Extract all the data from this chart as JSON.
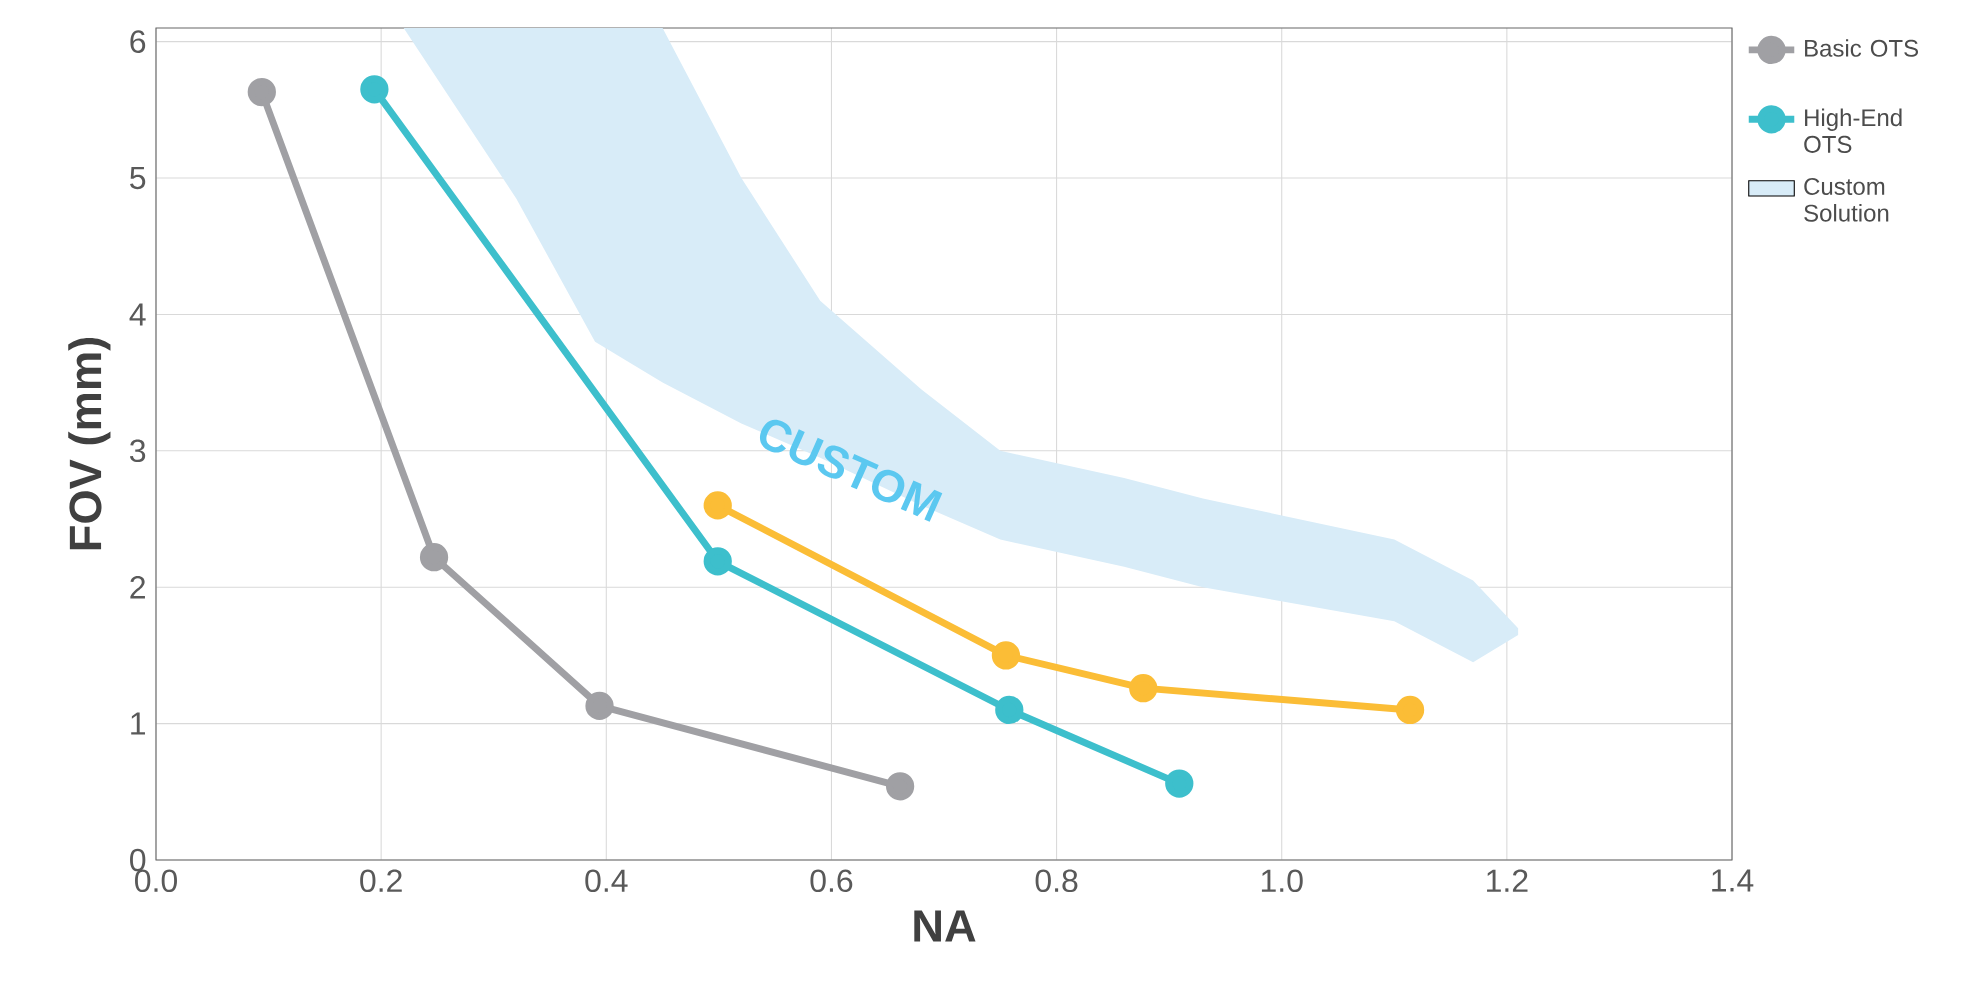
{
  "chart_data": {
    "type": "line",
    "xlabel": "NA",
    "ylabel": "FOV (mm)",
    "xlim": [
      0,
      1.4
    ],
    "ylim": [
      0,
      6.1
    ],
    "xticks": [
      {
        "value": 0,
        "label": "0.0"
      },
      {
        "value": 0.2,
        "label": "0.2"
      },
      {
        "value": 0.4,
        "label": "0.4"
      },
      {
        "value": 0.6,
        "label": "0.6"
      },
      {
        "value": 0.8,
        "label": "0.8"
      },
      {
        "value": 1.0,
        "label": "1.0"
      },
      {
        "value": 1.2,
        "label": "1.2"
      },
      {
        "value": 1.4,
        "label": "1.4"
      }
    ],
    "yticks": [
      0,
      1,
      2,
      3,
      4,
      5,
      6
    ],
    "grid": true,
    "legend": "right",
    "marker": "circle",
    "line_style": "solid",
    "annotations": [
      "CUSTOM"
    ],
    "series": [
      {
        "name": "Basic OTS",
        "color": "#a0a0a4",
        "x": [
          0.094,
          0.247,
          0.394,
          0.661
        ],
        "values": [
          5.63,
          2.22,
          1.13,
          0.54
        ]
      },
      {
        "name": "High-End OTS",
        "color": "#3dbfcc",
        "x": [
          0.194,
          0.499,
          0.758,
          0.909
        ],
        "values": [
          5.65,
          2.19,
          1.1,
          0.56
        ]
      },
      {
        "color": "#fbbd36",
        "x": [
          0.499,
          0.755,
          0.877,
          1.114
        ],
        "values": [
          2.6,
          1.5,
          1.26,
          1.1
        ]
      },
      {
        "type": "area",
        "name": "Custom Solution",
        "color": "#d8ecf8",
        "x": [
          0.22,
          0.32,
          0.39,
          0.45,
          0.52,
          0.59,
          0.68,
          0.75,
          0.86,
          0.93,
          1.1,
          1.17,
          1.21
        ],
        "values": [
          null,
          null,
          null,
          null,
          null,
          null,
          null,
          null,
          null,
          null,
          null,
          null,
          null
        ],
        "upper": [
          6.1,
          6.1,
          6.1,
          6.1,
          5.0,
          4.1,
          3.45,
          3.0,
          2.8,
          2.65,
          2.35,
          2.05,
          1.7
        ],
        "lower": [
          6.1,
          4.85,
          3.8,
          3.5,
          3.2,
          2.95,
          2.6,
          2.35,
          2.15,
          2.0,
          1.75,
          1.45,
          1.65
        ]
      }
    ]
  }
}
